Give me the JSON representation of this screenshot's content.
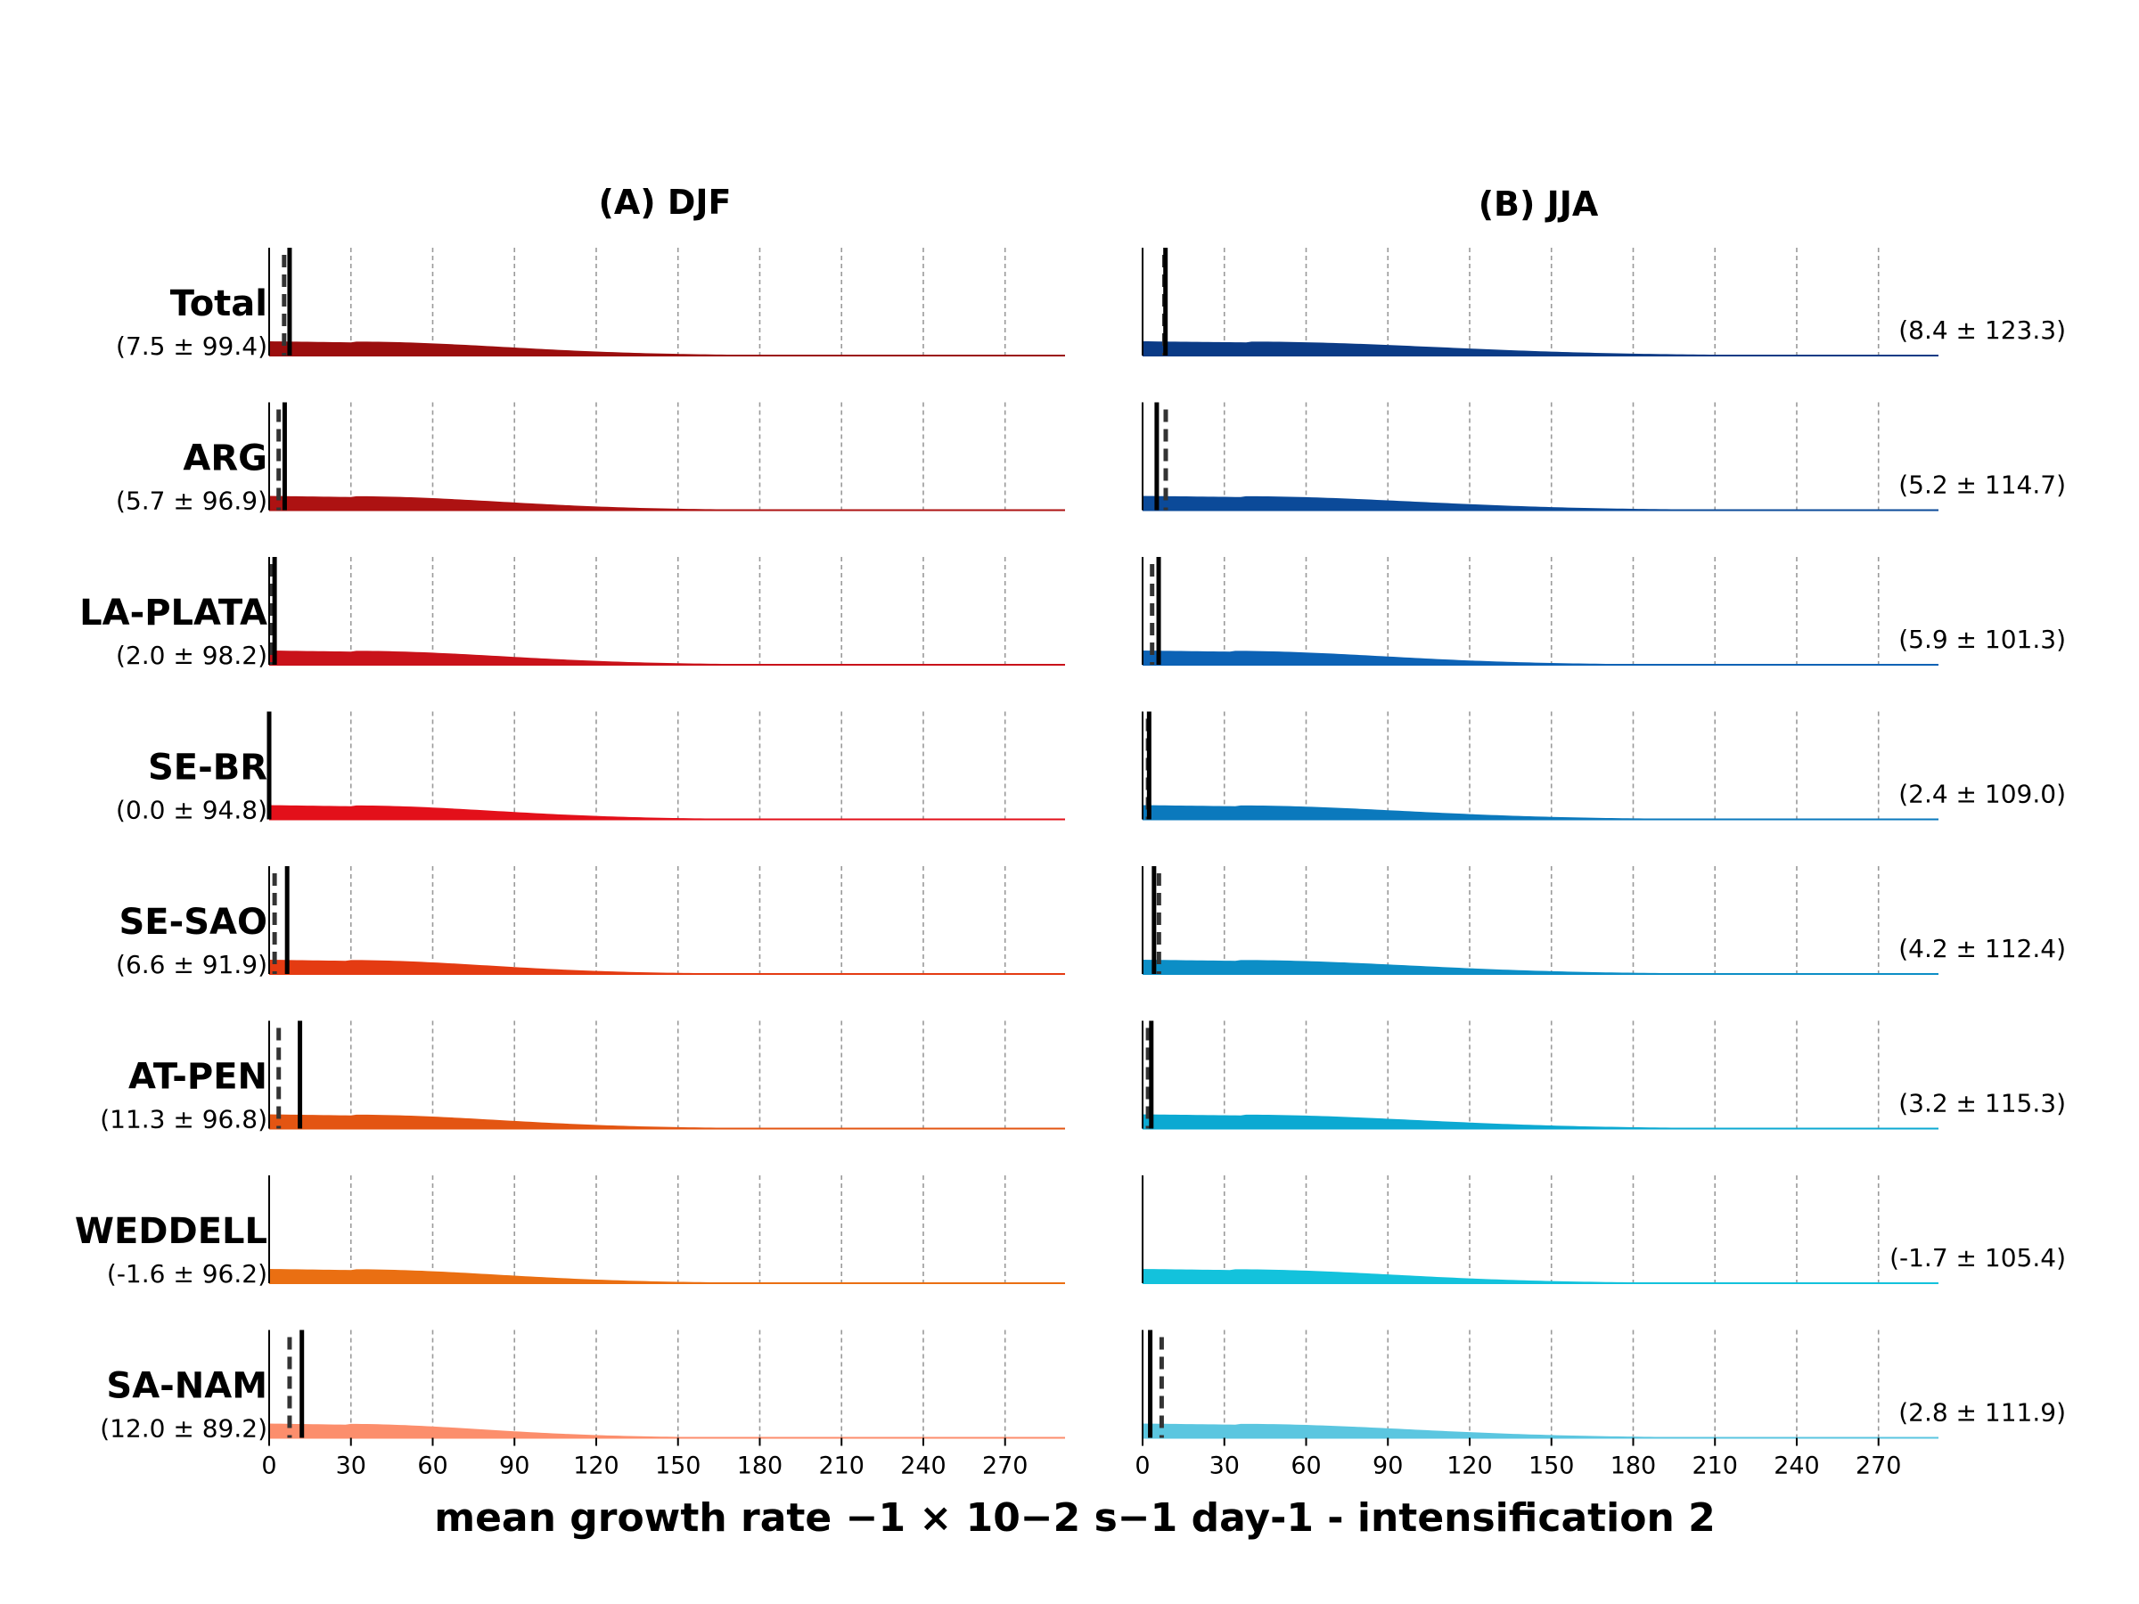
{
  "figure": {
    "panel_titles": [
      "(A) DJF",
      "(B) JJA"
    ],
    "xlabel": "mean growth rate  −1 × 10−2 s−1 day-1 - intensification 2"
  },
  "chart_data": {
    "type": "area",
    "description_free": true,
    "xlabel": "mean growth rate  −1 × 10−2 s−1 day-1 - intensification 2",
    "xlim": [
      0,
      292
    ],
    "xticks": [
      0,
      30,
      60,
      90,
      120,
      150,
      180,
      210,
      240,
      270
    ],
    "grid": "vertical dashed",
    "panels": [
      {
        "title": "(A) DJF",
        "rows": [
          {
            "region": "Total",
            "stat": "(7.5 ± 99.4)",
            "mean": 7.5,
            "std": 99.4,
            "median": 5.5,
            "color": "#9b0e0e"
          },
          {
            "region": "ARG",
            "stat": "(5.7 ± 96.9)",
            "mean": 5.7,
            "std": 96.9,
            "median": 3.5,
            "color": "#ad1212"
          },
          {
            "region": "LA-PLATA",
            "stat": "(2.0 ± 98.2)",
            "mean": 2.0,
            "std": 98.2,
            "median": 1.0,
            "color": "#c9121a"
          },
          {
            "region": "SE-BR",
            "stat": "(0.0 ± 94.8)",
            "mean": 0.0,
            "std": 94.8,
            "median": 0.0,
            "color": "#e3101a"
          },
          {
            "region": "SE-SAO",
            "stat": "(6.6 ± 91.9)",
            "mean": 6.6,
            "std": 91.9,
            "median": 2.0,
            "color": "#e43b12"
          },
          {
            "region": "AT-PEN",
            "stat": "(11.3 ± 96.8)",
            "mean": 11.3,
            "std": 96.8,
            "median": 3.5,
            "color": "#e35512"
          },
          {
            "region": "WEDDELL",
            "stat": "(-1.6 ± 96.2)",
            "mean": -1.6,
            "std": 96.2,
            "median": -2.5,
            "color": "#ea6f12"
          },
          {
            "region": "SA-NAM",
            "stat": "(12.0 ± 89.2)",
            "mean": 12.0,
            "std": 89.2,
            "median": 7.5,
            "color": "#fc8e6c"
          }
        ]
      },
      {
        "title": "(B) JJA",
        "rows": [
          {
            "region": "Total",
            "stat": "(8.4 ± 123.3)",
            "mean": 8.4,
            "std": 123.3,
            "median": 8.0,
            "color": "#0b3b86"
          },
          {
            "region": "ARG",
            "stat": "(5.2 ± 114.7)",
            "mean": 5.2,
            "std": 114.7,
            "median": 8.5,
            "color": "#0b4a99"
          },
          {
            "region": "LA-PLATA",
            "stat": "(5.9 ± 101.3)",
            "mean": 5.9,
            "std": 101.3,
            "median": 3.5,
            "color": "#0c62b5"
          },
          {
            "region": "SE-BR",
            "stat": "(2.4 ± 109.0)",
            "mean": 2.4,
            "std": 109.0,
            "median": 2.0,
            "color": "#0b79bd"
          },
          {
            "region": "SE-SAO",
            "stat": "(4.2 ± 112.4)",
            "mean": 4.2,
            "std": 112.4,
            "median": 6.0,
            "color": "#0c8ec6"
          },
          {
            "region": "AT-PEN",
            "stat": "(3.2 ± 115.3)",
            "mean": 3.2,
            "std": 115.3,
            "median": 2.0,
            "color": "#0ca9d2"
          },
          {
            "region": "WEDDELL",
            "stat": "(-1.7 ± 105.4)",
            "mean": -1.7,
            "std": 105.4,
            "median": -2.5,
            "color": "#13c2dc"
          },
          {
            "region": "SA-NAM",
            "stat": "(2.8 ± 111.9)",
            "mean": 2.8,
            "std": 111.9,
            "median": 7.0,
            "color": "#5bc6e0"
          }
        ]
      }
    ],
    "legend": {
      "solid_vertical_line": "mean",
      "dashed_vertical_line": "median"
    }
  }
}
